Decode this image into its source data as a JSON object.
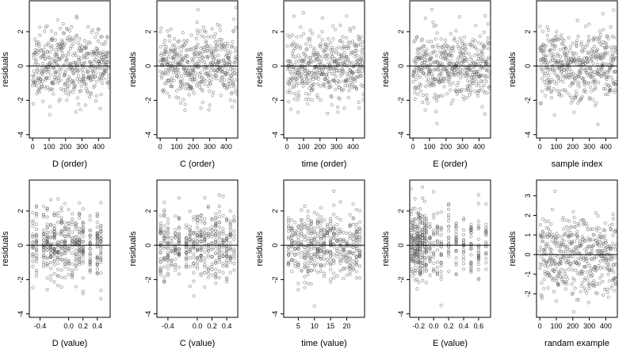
{
  "chart_data": [
    {
      "type": "scatter",
      "xlabel": "D (order)",
      "ylabel": "residuals",
      "xlim": [
        -20,
        470
      ],
      "ylim": [
        -4.2,
        3.8
      ],
      "xticks": [
        0,
        100,
        200,
        300,
        400
      ],
      "xtick_labels": [
        "0",
        "100",
        "200",
        "300",
        "400"
      ],
      "yticks": [
        -4,
        -2,
        0,
        2
      ],
      "ytick_labels": [
        "-4",
        "-2",
        "0",
        "2"
      ],
      "hline": 0,
      "n_points": 465,
      "x_kind": "index",
      "seed": 11
    },
    {
      "type": "scatter",
      "xlabel": "C (order)",
      "ylabel": "residuals",
      "xlim": [
        -20,
        470
      ],
      "ylim": [
        -4.2,
        3.8
      ],
      "xticks": [
        0,
        100,
        200,
        300,
        400
      ],
      "xtick_labels": [
        "0",
        "100",
        "200",
        "300",
        "400"
      ],
      "yticks": [
        -4,
        -2,
        0,
        2
      ],
      "ytick_labels": [
        "-4",
        "-2",
        "0",
        "2"
      ],
      "hline": 0,
      "n_points": 465,
      "x_kind": "index",
      "seed": 23
    },
    {
      "type": "scatter",
      "xlabel": "time (order)",
      "ylabel": "residuals",
      "xlim": [
        -20,
        470
      ],
      "ylim": [
        -4.2,
        3.8
      ],
      "xticks": [
        0,
        100,
        200,
        300,
        400
      ],
      "xtick_labels": [
        "0",
        "100",
        "200",
        "300",
        "400"
      ],
      "yticks": [
        -4,
        -2,
        0,
        2
      ],
      "ytick_labels": [
        "-4",
        "-2",
        "0",
        "2"
      ],
      "hline": 0,
      "n_points": 465,
      "x_kind": "index",
      "seed": 37
    },
    {
      "type": "scatter",
      "xlabel": "E (order)",
      "ylabel": "residuals",
      "xlim": [
        -20,
        470
      ],
      "ylim": [
        -4.2,
        3.8
      ],
      "xticks": [
        0,
        100,
        200,
        300,
        400
      ],
      "xtick_labels": [
        "0",
        "100",
        "200",
        "300",
        "400"
      ],
      "yticks": [
        -4,
        -2,
        0,
        2
      ],
      "ytick_labels": [
        "-4",
        "-2",
        "0",
        "2"
      ],
      "hline": 0,
      "n_points": 465,
      "x_kind": "index",
      "seed": 41
    },
    {
      "type": "scatter",
      "xlabel": "sample index",
      "ylabel": "residuals",
      "xlim": [
        -20,
        470
      ],
      "ylim": [
        -4.2,
        3.8
      ],
      "xticks": [
        0,
        100,
        200,
        300,
        400
      ],
      "xtick_labels": [
        "0",
        "100",
        "200",
        "300",
        "400"
      ],
      "yticks": [
        -4,
        -2,
        0,
        2
      ],
      "ytick_labels": [
        "-4",
        "-2",
        "0",
        "2"
      ],
      "hline": 0,
      "n_points": 465,
      "x_kind": "index",
      "seed": 53
    },
    {
      "type": "scatter",
      "xlabel": "D (value)",
      "ylabel": "residuals",
      "xlim": [
        -0.55,
        0.58
      ],
      "ylim": [
        -4.2,
        3.8
      ],
      "xticks": [
        -0.4,
        0,
        0.2,
        0.4
      ],
      "xtick_labels": [
        "-0.4",
        "0.0",
        "0.2",
        "0.4"
      ],
      "yticks": [
        -4,
        -2,
        0,
        2
      ],
      "ytick_labels": [
        "-4",
        "-2",
        "0",
        "2"
      ],
      "hline": 0,
      "n_points": 465,
      "x_kind": "discrete",
      "x_levels": [
        -0.5,
        -0.45,
        -0.35,
        -0.3,
        -0.25,
        -0.2,
        -0.15,
        -0.1,
        -0.05,
        0,
        0.05,
        0.1,
        0.15,
        0.2,
        0.3,
        0.4,
        0.45
      ],
      "seed": 61
    },
    {
      "type": "scatter",
      "xlabel": "C (value)",
      "ylabel": "residuals",
      "xlim": [
        -0.55,
        0.55
      ],
      "ylim": [
        -4.2,
        3.8
      ],
      "xticks": [
        -0.4,
        0,
        0.2,
        0.4
      ],
      "xtick_labels": [
        "-0.4",
        "0.0",
        "0.2",
        "0.4"
      ],
      "yticks": [
        -4,
        -2,
        0,
        2
      ],
      "ytick_labels": [
        "-4",
        "-2",
        "0",
        "2"
      ],
      "hline": 0,
      "n_points": 465,
      "x_kind": "discrete",
      "x_levels": [
        -0.5,
        -0.45,
        -0.4,
        -0.35,
        -0.3,
        -0.25,
        -0.15,
        -0.1,
        -0.05,
        0,
        0.05,
        0.1,
        0.15,
        0.2,
        0.25,
        0.3,
        0.35,
        0.4,
        0.45,
        0.5
      ],
      "seed": 71
    },
    {
      "type": "scatter",
      "xlabel": "time (value)",
      "ylabel": "residuals",
      "xlim": [
        0.5,
        25.5
      ],
      "ylim": [
        -4.2,
        3.8
      ],
      "xticks": [
        5,
        10,
        15,
        20
      ],
      "xtick_labels": [
        "5",
        "10",
        "15",
        "20"
      ],
      "yticks": [
        -4,
        -2,
        0,
        2
      ],
      "ytick_labels": [
        "-4",
        "-2",
        "0",
        "2"
      ],
      "hline": 0,
      "n_points": 465,
      "x_kind": "discrete",
      "x_levels": [
        2,
        3,
        4,
        5,
        6,
        7,
        8,
        9,
        10,
        11,
        12,
        13,
        14,
        15,
        16,
        17,
        18,
        19,
        20,
        21,
        22,
        23,
        24
      ],
      "seed": 83
    },
    {
      "type": "scatter",
      "xlabel": "E (value)",
      "ylabel": "residuals",
      "xlim": [
        -0.32,
        0.76
      ],
      "ylim": [
        -4.2,
        3.8
      ],
      "xticks": [
        -0.2,
        0,
        0.2,
        0.4,
        0.6
      ],
      "xtick_labels": [
        "-0.2",
        "0.0",
        "0.2",
        "0.4",
        "0.6"
      ],
      "yticks": [
        -4,
        -2,
        0,
        2
      ],
      "ytick_labels": [
        "-4",
        "-2",
        "0",
        "2"
      ],
      "hline": 0,
      "n_points": 465,
      "x_kind": "discrete",
      "x_levels": [
        -0.3,
        -0.28,
        -0.25,
        -0.22,
        -0.2,
        -0.18,
        -0.15,
        -0.12,
        -0.1,
        -0.05,
        0,
        0.05,
        0.1,
        0.2,
        0.3,
        0.4,
        0.5,
        0.6,
        0.7
      ],
      "seed": 97
    },
    {
      "type": "scatter",
      "xlabel": "randam example",
      "ylabel": "residuals",
      "xlim": [
        -20,
        470
      ],
      "ylim": [
        -3.2,
        3.8
      ],
      "xticks": [
        0,
        100,
        200,
        300,
        400
      ],
      "xtick_labels": [
        "0",
        "100",
        "200",
        "300",
        "400"
      ],
      "yticks": [
        -2,
        -1,
        0,
        1,
        2,
        3
      ],
      "ytick_labels": [
        "-2",
        "-1",
        "0",
        "1",
        "2",
        "3"
      ],
      "hline": 0,
      "n_points": 465,
      "x_kind": "index",
      "seed": 101
    }
  ]
}
